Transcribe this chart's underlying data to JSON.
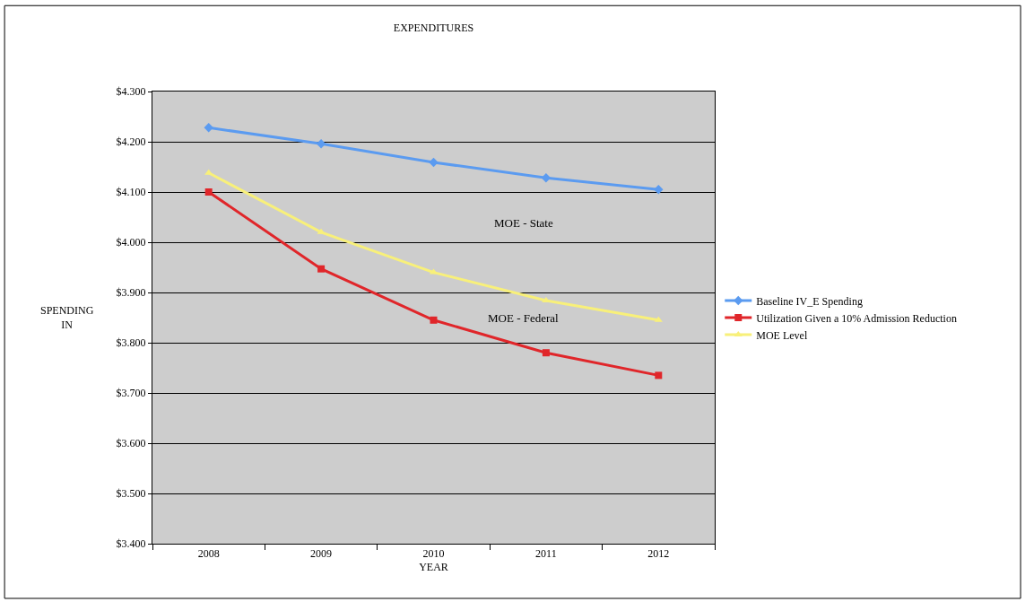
{
  "chart_data": {
    "type": "line",
    "title": "EXPENDITURES",
    "xlabel": "YEAR",
    "ylabel": "SPENDING\nIN",
    "categories": [
      "2008",
      "2009",
      "2010",
      "2011",
      "2012"
    ],
    "series": [
      {
        "name": "Baseline IV_E Spending",
        "color": "#5b9bf0",
        "marker": "diamond",
        "values": [
          4.228,
          4.196,
          4.159,
          4.128,
          4.105
        ]
      },
      {
        "name": "Utilization Given a 10% Admission Reduction",
        "color": "#e0262a",
        "marker": "square",
        "values": [
          4.1,
          3.947,
          3.845,
          3.78,
          3.735
        ]
      },
      {
        "name": "MOE Level",
        "color": "#f8f07a",
        "marker": "triangle",
        "values": [
          4.138,
          4.02,
          3.94,
          3.884,
          3.845
        ]
      }
    ],
    "annotations": [
      "MOE - State",
      "MOE - Federal"
    ],
    "ylim": [
      3.4,
      4.3
    ],
    "yticks": [
      {
        "value": 3.4,
        "label": "$3.400"
      },
      {
        "value": 3.5,
        "label": "$3.500"
      },
      {
        "value": 3.6,
        "label": "$3.600"
      },
      {
        "value": 3.7,
        "label": "$3.700"
      },
      {
        "value": 3.8,
        "label": "$3.800"
      },
      {
        "value": 3.9,
        "label": "$3.900"
      },
      {
        "value": 4.0,
        "label": "$4.000"
      },
      {
        "value": 4.1,
        "label": "$4.100"
      },
      {
        "value": 4.2,
        "label": "$4.200"
      },
      {
        "value": 4.3,
        "label": "$4.300"
      }
    ],
    "grid": "y",
    "legend": "right",
    "line_style": "solid"
  }
}
